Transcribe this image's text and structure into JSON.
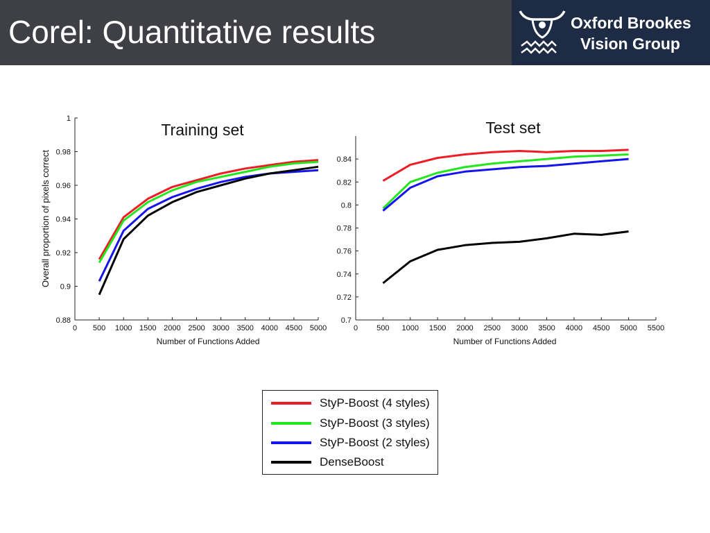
{
  "slide": {
    "title": "Corel: Quantitative results",
    "logo": {
      "line1": "Oxford Brookes",
      "line2": "Vision Group"
    }
  },
  "colors": {
    "header_bg": "#3f3f46",
    "logo_bg": "#1d2b45",
    "red": "#ee1c24",
    "green": "#22e61e",
    "blue": "#1414ee",
    "black": "#000000"
  },
  "legend": [
    {
      "label": "StyP-Boost (4 styles)",
      "color": "#ee1c24"
    },
    {
      "label": "StyP-Boost (3 styles)",
      "color": "#22e61e"
    },
    {
      "label": "StyP-Boost (2 styles)",
      "color": "#1414ee"
    },
    {
      "label": "DenseBoost",
      "color": "#000000"
    }
  ],
  "chart_data": [
    {
      "type": "line",
      "title": "Training set",
      "xlabel": "Number of Functions Added",
      "ylabel": "Overall proportion of pixels correct",
      "xlim": [
        0,
        5000
      ],
      "ylim": [
        0.88,
        1
      ],
      "xticks": [
        0,
        500,
        1000,
        1500,
        2000,
        2500,
        3000,
        3500,
        4000,
        4500,
        5000
      ],
      "yticks": [
        0.88,
        0.9,
        0.92,
        0.94,
        0.96,
        0.98,
        1
      ],
      "ytick_labels": [
        "0.88",
        "0.9",
        "0.92",
        "0.94",
        "0.96",
        "0.98",
        "1"
      ],
      "x": [
        500,
        1000,
        1500,
        2000,
        2500,
        3000,
        3500,
        4000,
        4500,
        5000
      ],
      "series": [
        {
          "name": "StyP-Boost (4 styles)",
          "color": "#ee1c24",
          "values": [
            0.916,
            0.941,
            0.952,
            0.959,
            0.963,
            0.967,
            0.97,
            0.972,
            0.974,
            0.975
          ]
        },
        {
          "name": "StyP-Boost (3 styles)",
          "color": "#22e61e",
          "values": [
            0.914,
            0.939,
            0.95,
            0.957,
            0.962,
            0.965,
            0.968,
            0.971,
            0.973,
            0.974
          ]
        },
        {
          "name": "StyP-Boost (2 styles)",
          "color": "#1414ee",
          "values": [
            0.903,
            0.933,
            0.946,
            0.953,
            0.958,
            0.962,
            0.965,
            0.967,
            0.968,
            0.969
          ]
        },
        {
          "name": "DenseBoost",
          "color": "#000000",
          "values": [
            0.895,
            0.928,
            0.942,
            0.95,
            0.956,
            0.96,
            0.964,
            0.967,
            0.969,
            0.971
          ]
        }
      ]
    },
    {
      "type": "line",
      "title": "Test set",
      "xlabel": "Number of Functions Added",
      "ylabel": "",
      "xlim": [
        0,
        5500
      ],
      "ylim": [
        0.7,
        0.86
      ],
      "xticks": [
        0,
        500,
        1000,
        1500,
        2000,
        2500,
        3000,
        3500,
        4000,
        4500,
        5000,
        5500
      ],
      "yticks": [
        0.7,
        0.72,
        0.74,
        0.76,
        0.78,
        0.8,
        0.82,
        0.84
      ],
      "ytick_labels": [
        "0.7",
        "0.72",
        "0.74",
        "0.76",
        "0.78",
        "0.8",
        "0.82",
        "0.84"
      ],
      "x": [
        500,
        1000,
        1500,
        2000,
        2500,
        3000,
        3500,
        4000,
        4500,
        5000
      ],
      "series": [
        {
          "name": "StyP-Boost (4 styles)",
          "color": "#ee1c24",
          "values": [
            0.821,
            0.835,
            0.841,
            0.844,
            0.846,
            0.847,
            0.846,
            0.847,
            0.847,
            0.848
          ]
        },
        {
          "name": "StyP-Boost (3 styles)",
          "color": "#22e61e",
          "values": [
            0.797,
            0.82,
            0.828,
            0.833,
            0.836,
            0.838,
            0.84,
            0.842,
            0.843,
            0.844
          ]
        },
        {
          "name": "StyP-Boost (2 styles)",
          "color": "#1414ee",
          "values": [
            0.795,
            0.815,
            0.825,
            0.829,
            0.831,
            0.833,
            0.834,
            0.836,
            0.838,
            0.84
          ]
        },
        {
          "name": "DenseBoost",
          "color": "#000000",
          "values": [
            0.732,
            0.751,
            0.761,
            0.765,
            0.767,
            0.768,
            0.771,
            0.775,
            0.774,
            0.777
          ]
        }
      ]
    }
  ]
}
